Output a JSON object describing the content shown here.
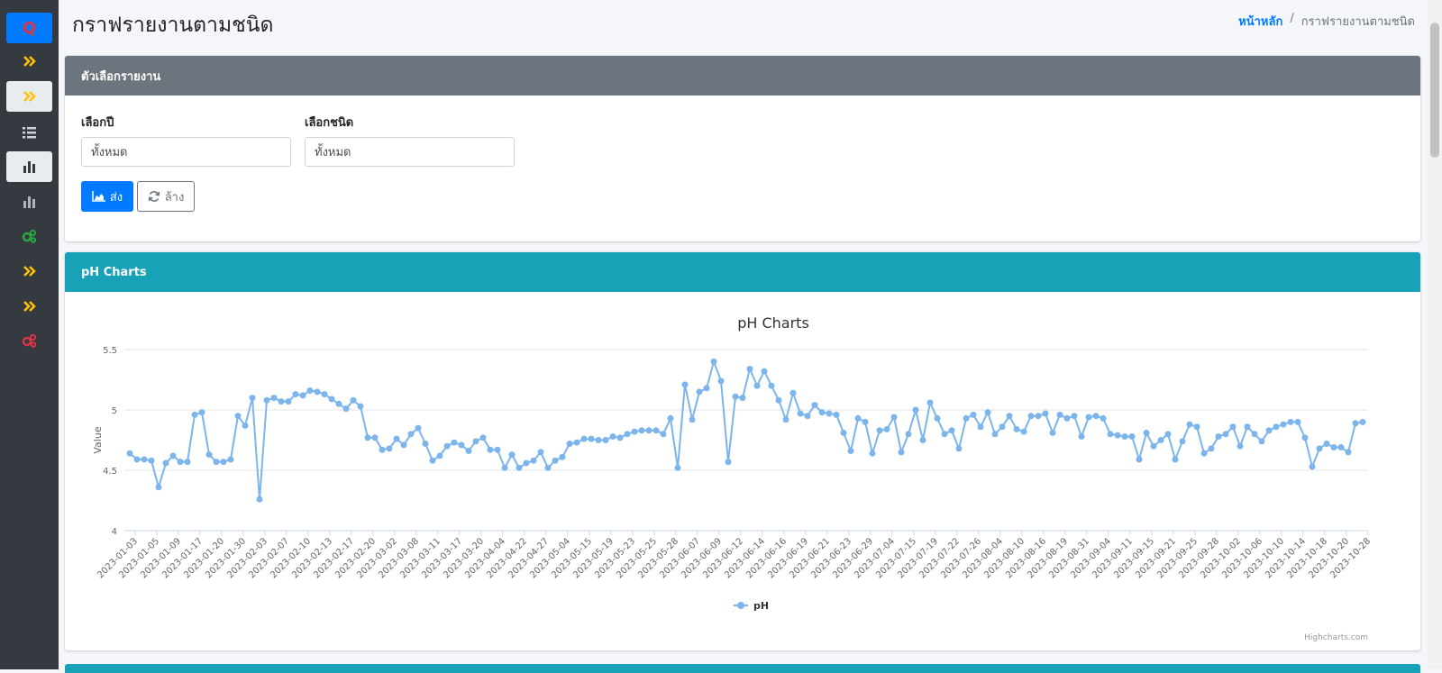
{
  "page": {
    "title": "กราฟรายงานตามชนิด"
  },
  "breadcrumb": {
    "home": "หน้าหลัก",
    "separator": "/",
    "current": "กราฟรายงานตามชนิด"
  },
  "sidebar": {
    "logo": "Q",
    "items": [
      {
        "icon": "double-chevron-icon",
        "color": "#ffc107"
      },
      {
        "icon": "double-chevron-icon",
        "color": "#ffc107",
        "active": true
      },
      {
        "icon": "list-icon",
        "color": "#ced4da"
      },
      {
        "icon": "bar-chart-icon",
        "color": "#343a40",
        "active": true
      },
      {
        "icon": "bar-chart-icon",
        "color": "#adb5bd"
      },
      {
        "icon": "gears-icon",
        "color": "#28a745"
      },
      {
        "icon": "double-chevron-icon",
        "color": "#ffc107"
      },
      {
        "icon": "double-chevron-icon",
        "color": "#ffc107"
      },
      {
        "icon": "gears-icon",
        "color": "#dc3545"
      }
    ]
  },
  "options": {
    "header": "ตัวเลือกรายงาน",
    "year_label": "เลือกปี",
    "year_value": "ทั้งหมด",
    "type_label": "เลือกชนิด",
    "type_value": "ทั้งหมด",
    "submit_label": "ส่ง",
    "reset_label": "ล้าง"
  },
  "chart_card": {
    "header": "pH Charts",
    "credits": "Highcharts.com"
  },
  "colors": {
    "series": "#7cb5ec",
    "teal": "#17a2b8",
    "gray": "#6c757d",
    "primary": "#007bff"
  },
  "chart_data": {
    "type": "line",
    "title": "pH Charts",
    "ylabel": "Value",
    "ylim": [
      4,
      5.5
    ],
    "yticks": [
      "4",
      "4.5",
      "5",
      "5.5"
    ],
    "legend": "bottom-center",
    "grid": true,
    "xtick_labels": [
      "2023-01-03",
      "2023-01-05",
      "2023-01-09",
      "2023-01-17",
      "2023-01-20",
      "2023-01-30",
      "2023-02-03",
      "2023-02-07",
      "2023-02-10",
      "2023-02-13",
      "2023-02-17",
      "2023-02-20",
      "2023-03-02",
      "2023-03-08",
      "2023-03-11",
      "2023-03-17",
      "2023-03-20",
      "2023-04-04",
      "2023-04-22",
      "2023-04-27",
      "2023-05-04",
      "2023-05-15",
      "2023-05-19",
      "2023-05-23",
      "2023-05-25",
      "2023-05-28",
      "2023-06-07",
      "2023-06-09",
      "2023-06-12",
      "2023-06-14",
      "2023-06-16",
      "2023-06-19",
      "2023-06-21",
      "2023-06-23",
      "2023-06-29",
      "2023-07-04",
      "2023-07-15",
      "2023-07-19",
      "2023-07-22",
      "2023-07-26",
      "2023-08-04",
      "2023-08-10",
      "2023-08-16",
      "2023-08-19",
      "2023-08-31",
      "2023-09-04",
      "2023-09-11",
      "2023-09-15",
      "2023-09-21",
      "2023-09-25",
      "2023-09-28",
      "2023-10-02",
      "2023-10-06",
      "2023-10-10",
      "2023-10-14",
      "2023-10-18",
      "2023-10-20",
      "2023-10-28"
    ],
    "series": [
      {
        "name": "pH",
        "values": [
          4.64,
          4.59,
          4.59,
          4.58,
          4.36,
          4.56,
          4.62,
          4.57,
          4.57,
          4.96,
          4.98,
          4.63,
          4.57,
          4.57,
          4.59,
          4.95,
          4.87,
          5.1,
          4.26,
          5.08,
          5.1,
          5.07,
          5.07,
          5.13,
          5.12,
          5.16,
          5.15,
          5.13,
          5.09,
          5.05,
          5.01,
          5.08,
          5.03,
          4.77,
          4.77,
          4.67,
          4.68,
          4.76,
          4.71,
          4.8,
          4.85,
          4.72,
          4.58,
          4.62,
          4.7,
          4.73,
          4.71,
          4.66,
          4.74,
          4.77,
          4.67,
          4.67,
          4.52,
          4.63,
          4.52,
          4.56,
          4.58,
          4.65,
          4.52,
          4.58,
          4.61,
          4.72,
          4.73,
          4.76,
          4.76,
          4.75,
          4.75,
          4.78,
          4.77,
          4.8,
          4.82,
          4.83,
          4.83,
          4.83,
          4.8,
          4.93,
          4.52,
          5.21,
          4.92,
          5.15,
          5.18,
          5.4,
          5.24,
          4.57,
          5.11,
          5.1,
          5.34,
          5.2,
          5.32,
          5.2,
          5.08,
          4.92,
          5.14,
          4.97,
          4.95,
          5.04,
          4.98,
          4.97,
          4.96,
          4.81,
          4.66,
          4.93,
          4.9,
          4.64,
          4.83,
          4.84,
          4.94,
          4.65,
          4.8,
          5.0,
          4.75,
          5.06,
          4.93,
          4.8,
          4.83,
          4.68,
          4.93,
          4.96,
          4.86,
          4.98,
          4.8,
          4.86,
          4.95,
          4.84,
          4.82,
          4.95,
          4.95,
          4.97,
          4.81,
          4.96,
          4.93,
          4.95,
          4.78,
          4.94,
          4.95,
          4.93,
          4.8,
          4.79,
          4.78,
          4.78,
          4.59,
          4.81,
          4.7,
          4.75,
          4.8,
          4.59,
          4.74,
          4.88,
          4.86,
          4.64,
          4.68,
          4.78,
          4.8,
          4.86,
          4.7,
          4.86,
          4.8,
          4.74,
          4.83,
          4.86,
          4.88,
          4.9,
          4.9,
          4.77,
          4.53,
          4.68,
          4.72,
          4.69,
          4.69,
          4.65,
          4.89,
          4.9
        ]
      }
    ]
  }
}
